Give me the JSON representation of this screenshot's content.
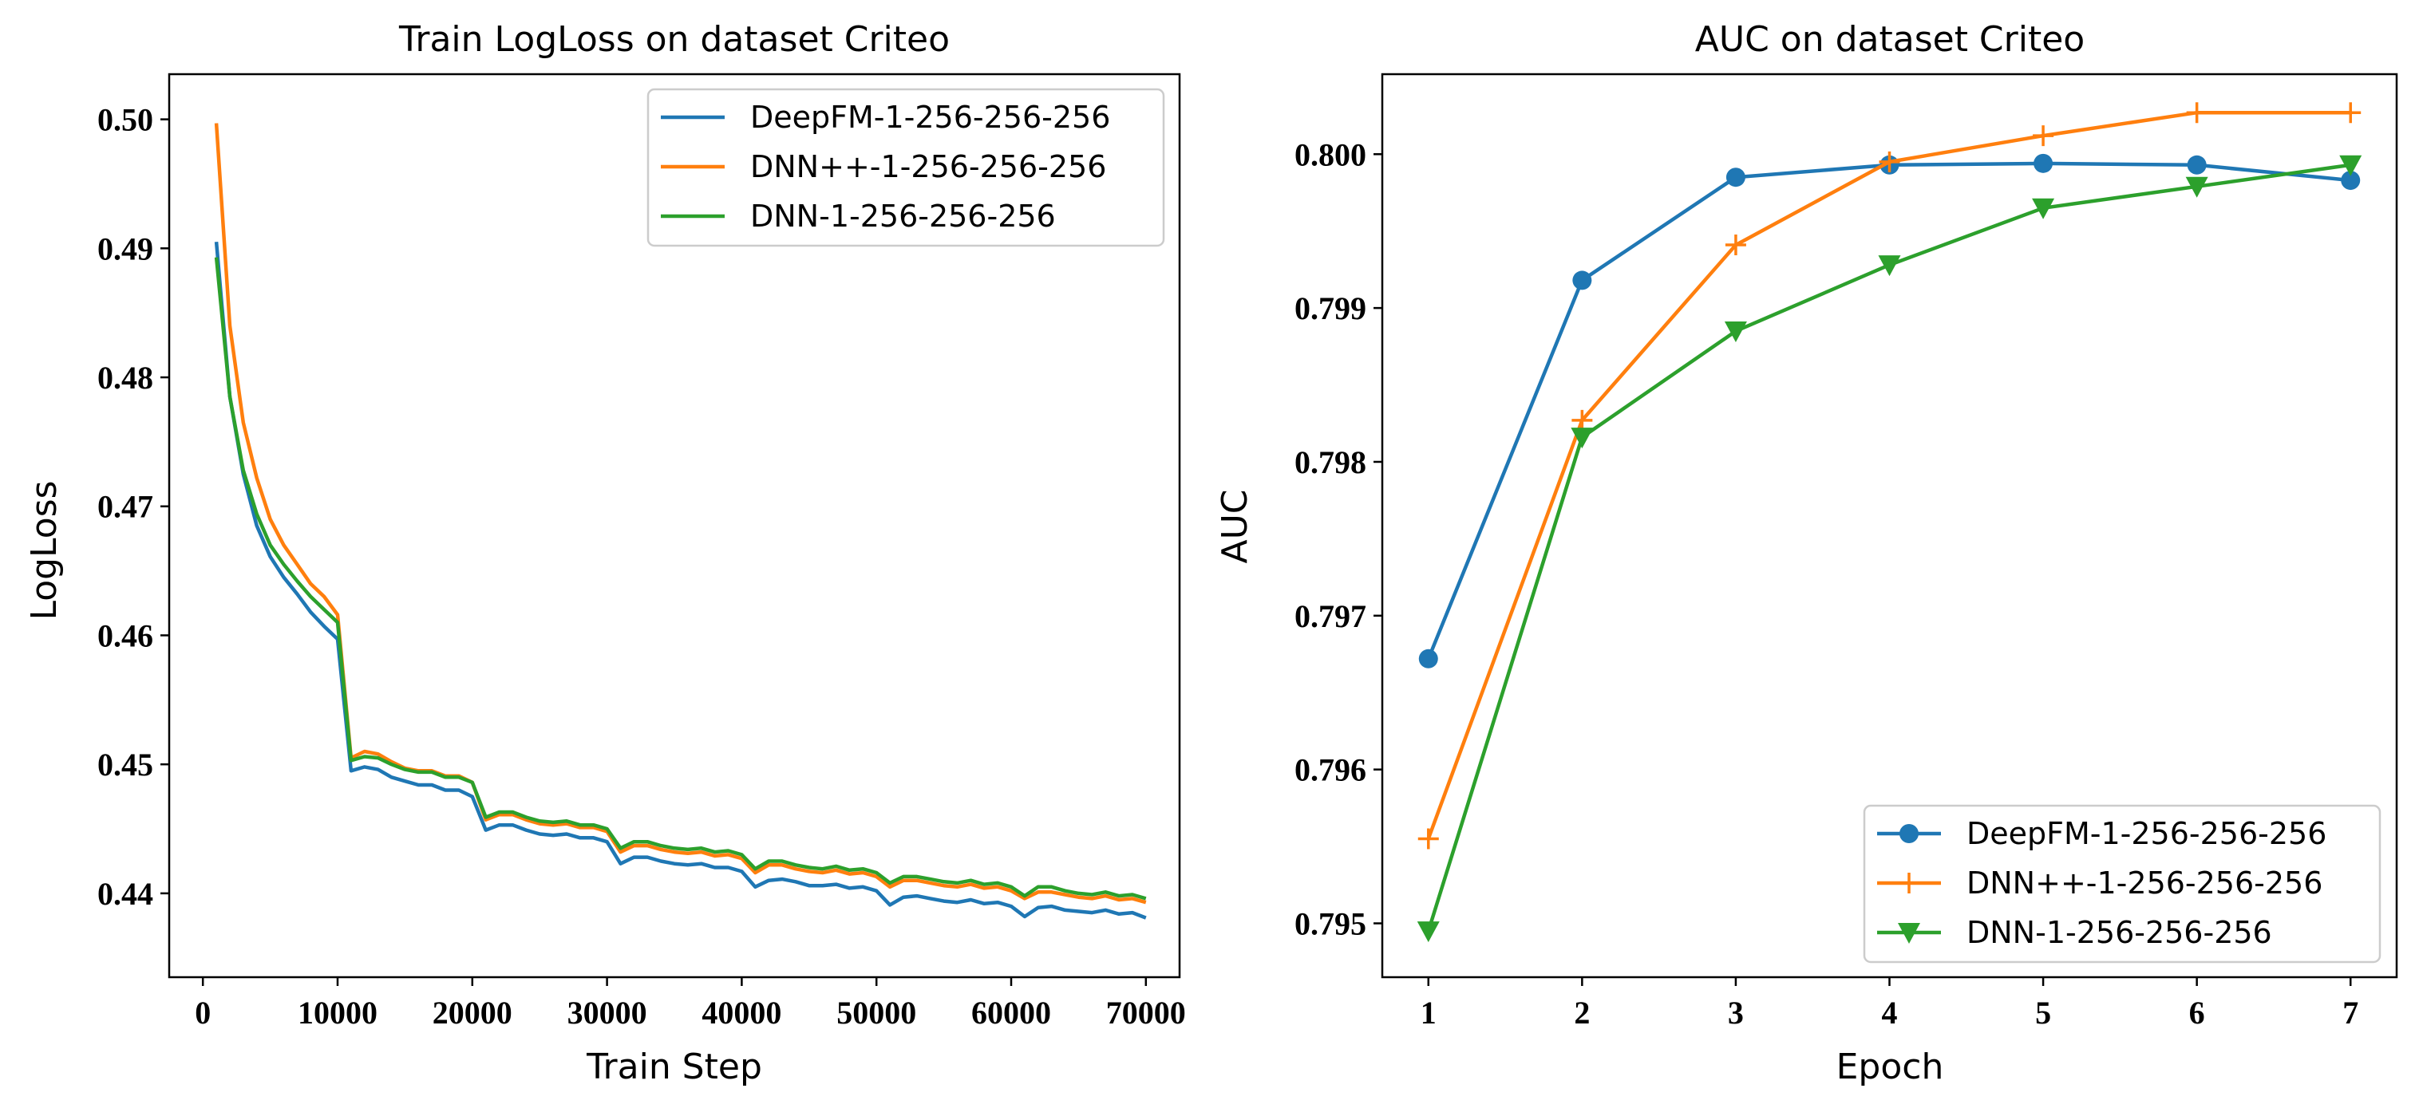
{
  "chart_data": [
    {
      "type": "line",
      "title": "Train LogLoss on dataset Criteo",
      "xlabel": "Train Step",
      "ylabel": "LogLoss",
      "xlim": [
        -2500,
        72500
      ],
      "ylim": [
        0.4335,
        0.5035
      ],
      "xticks": [
        0,
        10000,
        20000,
        30000,
        40000,
        50000,
        60000,
        70000
      ],
      "yticks": [
        0.44,
        0.45,
        0.46,
        0.47,
        0.48,
        0.49,
        0.5
      ],
      "ytick_labels": [
        "0.44",
        "0.45",
        "0.46",
        "0.47",
        "0.48",
        "0.49",
        "0.50"
      ],
      "legend_position": "upper right",
      "grid": false,
      "series": [
        {
          "name": "DeepFM-1-256-256-256",
          "color": "#1f77b4",
          "x": [
            1000,
            2000,
            3000,
            4000,
            5000,
            6000,
            7000,
            8000,
            9000,
            10000,
            11000,
            12000,
            13000,
            14000,
            15000,
            16000,
            17000,
            18000,
            19000,
            20000,
            21000,
            22000,
            23000,
            24000,
            25000,
            26000,
            27000,
            28000,
            29000,
            30000,
            31000,
            32000,
            33000,
            34000,
            35000,
            36000,
            37000,
            38000,
            39000,
            40000,
            41000,
            42000,
            43000,
            44000,
            45000,
            46000,
            47000,
            48000,
            49000,
            50000,
            51000,
            52000,
            53000,
            54000,
            55000,
            56000,
            57000,
            58000,
            59000,
            60000,
            61000,
            62000,
            63000,
            64000,
            65000,
            66000,
            67000,
            68000,
            69000,
            70000
          ],
          "y": [
            0.4905,
            0.4785,
            0.4725,
            0.4685,
            0.4661,
            0.4645,
            0.4632,
            0.4618,
            0.4607,
            0.4597,
            0.4495,
            0.4498,
            0.4496,
            0.449,
            0.4487,
            0.4484,
            0.4484,
            0.448,
            0.448,
            0.4475,
            0.4449,
            0.4453,
            0.4453,
            0.4449,
            0.4446,
            0.4445,
            0.4446,
            0.4443,
            0.4443,
            0.444,
            0.4423,
            0.4428,
            0.4428,
            0.4425,
            0.4423,
            0.4422,
            0.4423,
            0.442,
            0.442,
            0.4417,
            0.4405,
            0.441,
            0.4411,
            0.4409,
            0.4406,
            0.4406,
            0.4407,
            0.4404,
            0.4405,
            0.4402,
            0.4391,
            0.4397,
            0.4398,
            0.4396,
            0.4394,
            0.4393,
            0.4395,
            0.4392,
            0.4393,
            0.439,
            0.4382,
            0.4389,
            0.439,
            0.4387,
            0.4386,
            0.4385,
            0.4387,
            0.4384,
            0.4385,
            0.4381
          ]
        },
        {
          "name": "DNN++-1-256-256-256",
          "color": "#ff7f0e",
          "x": [
            1000,
            2000,
            3000,
            4000,
            5000,
            6000,
            7000,
            8000,
            9000,
            10000,
            11000,
            12000,
            13000,
            14000,
            15000,
            16000,
            17000,
            18000,
            19000,
            20000,
            21000,
            22000,
            23000,
            24000,
            25000,
            26000,
            27000,
            28000,
            29000,
            30000,
            31000,
            32000,
            33000,
            34000,
            35000,
            36000,
            37000,
            38000,
            39000,
            40000,
            41000,
            42000,
            43000,
            44000,
            45000,
            46000,
            47000,
            48000,
            49000,
            50000,
            51000,
            52000,
            53000,
            54000,
            55000,
            56000,
            57000,
            58000,
            59000,
            60000,
            61000,
            62000,
            63000,
            64000,
            65000,
            66000,
            67000,
            68000,
            69000,
            70000
          ],
          "y": [
            0.4997,
            0.484,
            0.4765,
            0.4722,
            0.469,
            0.467,
            0.4655,
            0.464,
            0.463,
            0.4616,
            0.4505,
            0.451,
            0.4508,
            0.4502,
            0.4497,
            0.4495,
            0.4495,
            0.4491,
            0.4491,
            0.4486,
            0.4457,
            0.4461,
            0.4461,
            0.4457,
            0.4454,
            0.4453,
            0.4454,
            0.4451,
            0.4451,
            0.4448,
            0.4432,
            0.4437,
            0.4437,
            0.4434,
            0.4432,
            0.4431,
            0.4432,
            0.4429,
            0.443,
            0.4427,
            0.4416,
            0.4422,
            0.4422,
            0.4419,
            0.4417,
            0.4416,
            0.4418,
            0.4415,
            0.4416,
            0.4413,
            0.4405,
            0.441,
            0.441,
            0.4408,
            0.4406,
            0.4405,
            0.4407,
            0.4404,
            0.4405,
            0.4402,
            0.4396,
            0.4401,
            0.4401,
            0.4399,
            0.4397,
            0.4396,
            0.4398,
            0.4395,
            0.4396,
            0.4393
          ]
        },
        {
          "name": "DNN-1-256-256-256",
          "color": "#2ca02c",
          "x": [
            1000,
            2000,
            3000,
            4000,
            5000,
            6000,
            7000,
            8000,
            9000,
            10000,
            11000,
            12000,
            13000,
            14000,
            15000,
            16000,
            17000,
            18000,
            19000,
            20000,
            21000,
            22000,
            23000,
            24000,
            25000,
            26000,
            27000,
            28000,
            29000,
            30000,
            31000,
            32000,
            33000,
            34000,
            35000,
            36000,
            37000,
            38000,
            39000,
            40000,
            41000,
            42000,
            43000,
            44000,
            45000,
            46000,
            47000,
            48000,
            49000,
            50000,
            51000,
            52000,
            53000,
            54000,
            55000,
            56000,
            57000,
            58000,
            59000,
            60000,
            61000,
            62000,
            63000,
            64000,
            65000,
            66000,
            67000,
            68000,
            69000,
            70000
          ],
          "y": [
            0.4893,
            0.4785,
            0.4728,
            0.4694,
            0.467,
            0.4655,
            0.4642,
            0.463,
            0.462,
            0.461,
            0.4503,
            0.4506,
            0.4505,
            0.45,
            0.4496,
            0.4494,
            0.4494,
            0.449,
            0.449,
            0.4486,
            0.4459,
            0.4463,
            0.4463,
            0.4459,
            0.4456,
            0.4455,
            0.4456,
            0.4453,
            0.4453,
            0.445,
            0.4435,
            0.444,
            0.444,
            0.4437,
            0.4435,
            0.4434,
            0.4435,
            0.4432,
            0.4433,
            0.443,
            0.4419,
            0.4425,
            0.4425,
            0.4422,
            0.442,
            0.4419,
            0.4421,
            0.4418,
            0.4419,
            0.4416,
            0.4408,
            0.4413,
            0.4413,
            0.4411,
            0.4409,
            0.4408,
            0.441,
            0.4407,
            0.4408,
            0.4405,
            0.4398,
            0.4405,
            0.4405,
            0.4402,
            0.44,
            0.4399,
            0.4401,
            0.4398,
            0.4399,
            0.4396
          ]
        }
      ]
    },
    {
      "type": "line",
      "title": "AUC on dataset Criteo",
      "xlabel": "Epoch",
      "ylabel": "AUC",
      "xlim": [
        0.7,
        7.3
      ],
      "ylim": [
        0.79465,
        0.80052
      ],
      "xticks": [
        1,
        2,
        3,
        4,
        5,
        6,
        7
      ],
      "yticks": [
        0.795,
        0.796,
        0.797,
        0.798,
        0.799,
        0.8
      ],
      "ytick_labels": [
        "0.795",
        "0.796",
        "0.797",
        "0.798",
        "0.799",
        "0.800"
      ],
      "legend_position": "lower right",
      "grid": false,
      "series": [
        {
          "name": "DeepFM-1-256-256-256",
          "color": "#1f77b4",
          "marker": "circle",
          "x": [
            1,
            2,
            3,
            4,
            5,
            6,
            7
          ],
          "y": [
            0.79672,
            0.79918,
            0.79985,
            0.79993,
            0.79994,
            0.79993,
            0.79983
          ]
        },
        {
          "name": "DNN++-1-256-256-256",
          "color": "#ff7f0e",
          "marker": "plus",
          "x": [
            1,
            2,
            3,
            4,
            5,
            6,
            7
          ],
          "y": [
            0.79555,
            0.79827,
            0.79941,
            0.79995,
            0.80012,
            0.80027,
            0.80027
          ]
        },
        {
          "name": "DNN-1-256-256-256",
          "color": "#2ca02c",
          "marker": "triangle-down",
          "x": [
            1,
            2,
            3,
            4,
            5,
            6,
            7
          ],
          "y": [
            0.79495,
            0.79816,
            0.79885,
            0.79928,
            0.79965,
            0.79979,
            0.79993
          ]
        }
      ]
    }
  ]
}
